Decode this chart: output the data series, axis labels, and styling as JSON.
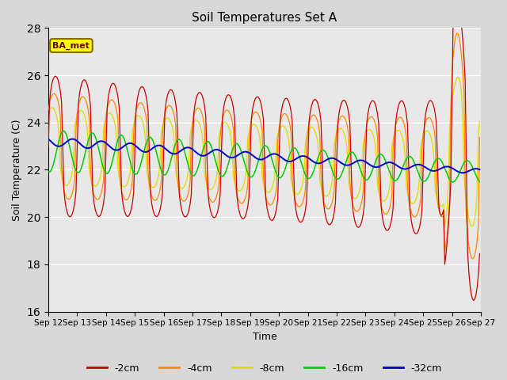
{
  "title": "Soil Temperatures Set A",
  "xlabel": "Time",
  "ylabel": "Soil Temperature (C)",
  "ylim": [
    16,
    28
  ],
  "yticks": [
    16,
    18,
    20,
    22,
    24,
    26,
    28
  ],
  "xtick_labels": [
    "Sep 12",
    "Sep 13",
    "Sep 14",
    "Sep 15",
    "Sep 16",
    "Sep 17",
    "Sep 18",
    "Sep 19",
    "Sep 20",
    "Sep 21",
    "Sep 22",
    "Sep 23",
    "Sep 24",
    "Sep 25",
    "Sep 26",
    "Sep 27"
  ],
  "colors": {
    "-2cm": "#cc0000",
    "-4cm": "#ff8800",
    "-8cm": "#dddd00",
    "-16cm": "#00cc00",
    "-32cm": "#0000cc"
  },
  "background_color": "#e8e8e8",
  "fig_bg_color": "#d8d8d8",
  "annotation_text": "BA_met",
  "annotation_bg": "#ffff00",
  "annotation_border": "#886600"
}
